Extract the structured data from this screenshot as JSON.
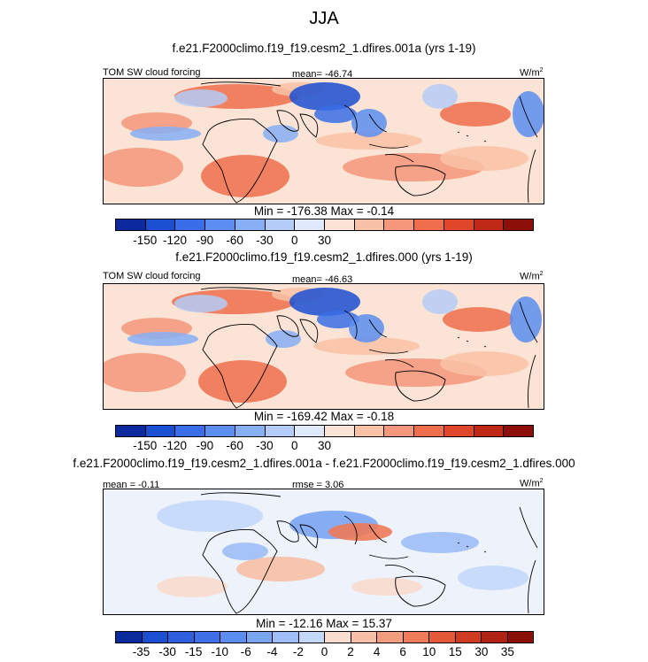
{
  "page_title": "JJA",
  "chart_data": [
    {
      "type": "heatmap",
      "title": "f.e21.F2000climo.f19_f19.cesm2_1.dfires.001a (yrs 1-19)",
      "left_label": "TOM SW cloud forcing",
      "center_label": "mean= -46.74",
      "units": "W/m",
      "units_sup": "2",
      "min_max": "Min = -176.38 Max =  -0.14",
      "colorbar_ticks": [
        "-150",
        "-120",
        "-90",
        "-60",
        "-30",
        "0",
        "30"
      ],
      "colorbar_colors": [
        "#0c2a9e",
        "#1a4fd1",
        "#3a6ee8",
        "#5b8ef0",
        "#86aff5",
        "#b4cdf8",
        "#dfe9fb",
        "#fbe4d6",
        "#f9c2a6",
        "#f5977a",
        "#ef6f4c",
        "#e0472a",
        "#bf2a16",
        "#8c0f0a"
      ]
    },
    {
      "type": "heatmap",
      "title": "f.e21.F2000climo.f19_f19.cesm2_1.dfires.000 (yrs 1-19)",
      "left_label": "TOM SW cloud forcing",
      "center_label": "mean= -46.63",
      "units": "W/m",
      "units_sup": "2",
      "min_max": "Min = -169.42 Max =  -0.18",
      "colorbar_ticks": [
        "-150",
        "-120",
        "-90",
        "-60",
        "-30",
        "0",
        "30"
      ],
      "colorbar_colors": [
        "#0c2a9e",
        "#1a4fd1",
        "#3a6ee8",
        "#5b8ef0",
        "#86aff5",
        "#b4cdf8",
        "#dfe9fb",
        "#fbe4d6",
        "#f9c2a6",
        "#f5977a",
        "#ef6f4c",
        "#e0472a",
        "#bf2a16",
        "#8c0f0a"
      ]
    },
    {
      "type": "heatmap",
      "title": "f.e21.F2000climo.f19_f19.cesm2_1.dfires.001a - f.e21.F2000climo.f19_f19.cesm2_1.dfires.000",
      "left_label": "mean =  -0.11",
      "center_label": "rmse =  3.06",
      "units": "W/m",
      "units_sup": "2",
      "min_max": "Min = -12.16 Max =  15.37",
      "colorbar_ticks": [
        "-35",
        "-30",
        "-15",
        "-10",
        "-6",
        "-4",
        "-2",
        "0",
        "2",
        "4",
        "6",
        "10",
        "15",
        "30",
        "35"
      ],
      "colorbar_colors": [
        "#0c2a9e",
        "#1a4fd1",
        "#2d5fe0",
        "#3f70ea",
        "#5b8ef0",
        "#7aa5f3",
        "#9dbef6",
        "#c4d8fa",
        "#f8dccd",
        "#f7bfa5",
        "#f39c7e",
        "#ee7a58",
        "#e45a39",
        "#cf3a21",
        "#b02312",
        "#8c0f0a"
      ]
    }
  ]
}
